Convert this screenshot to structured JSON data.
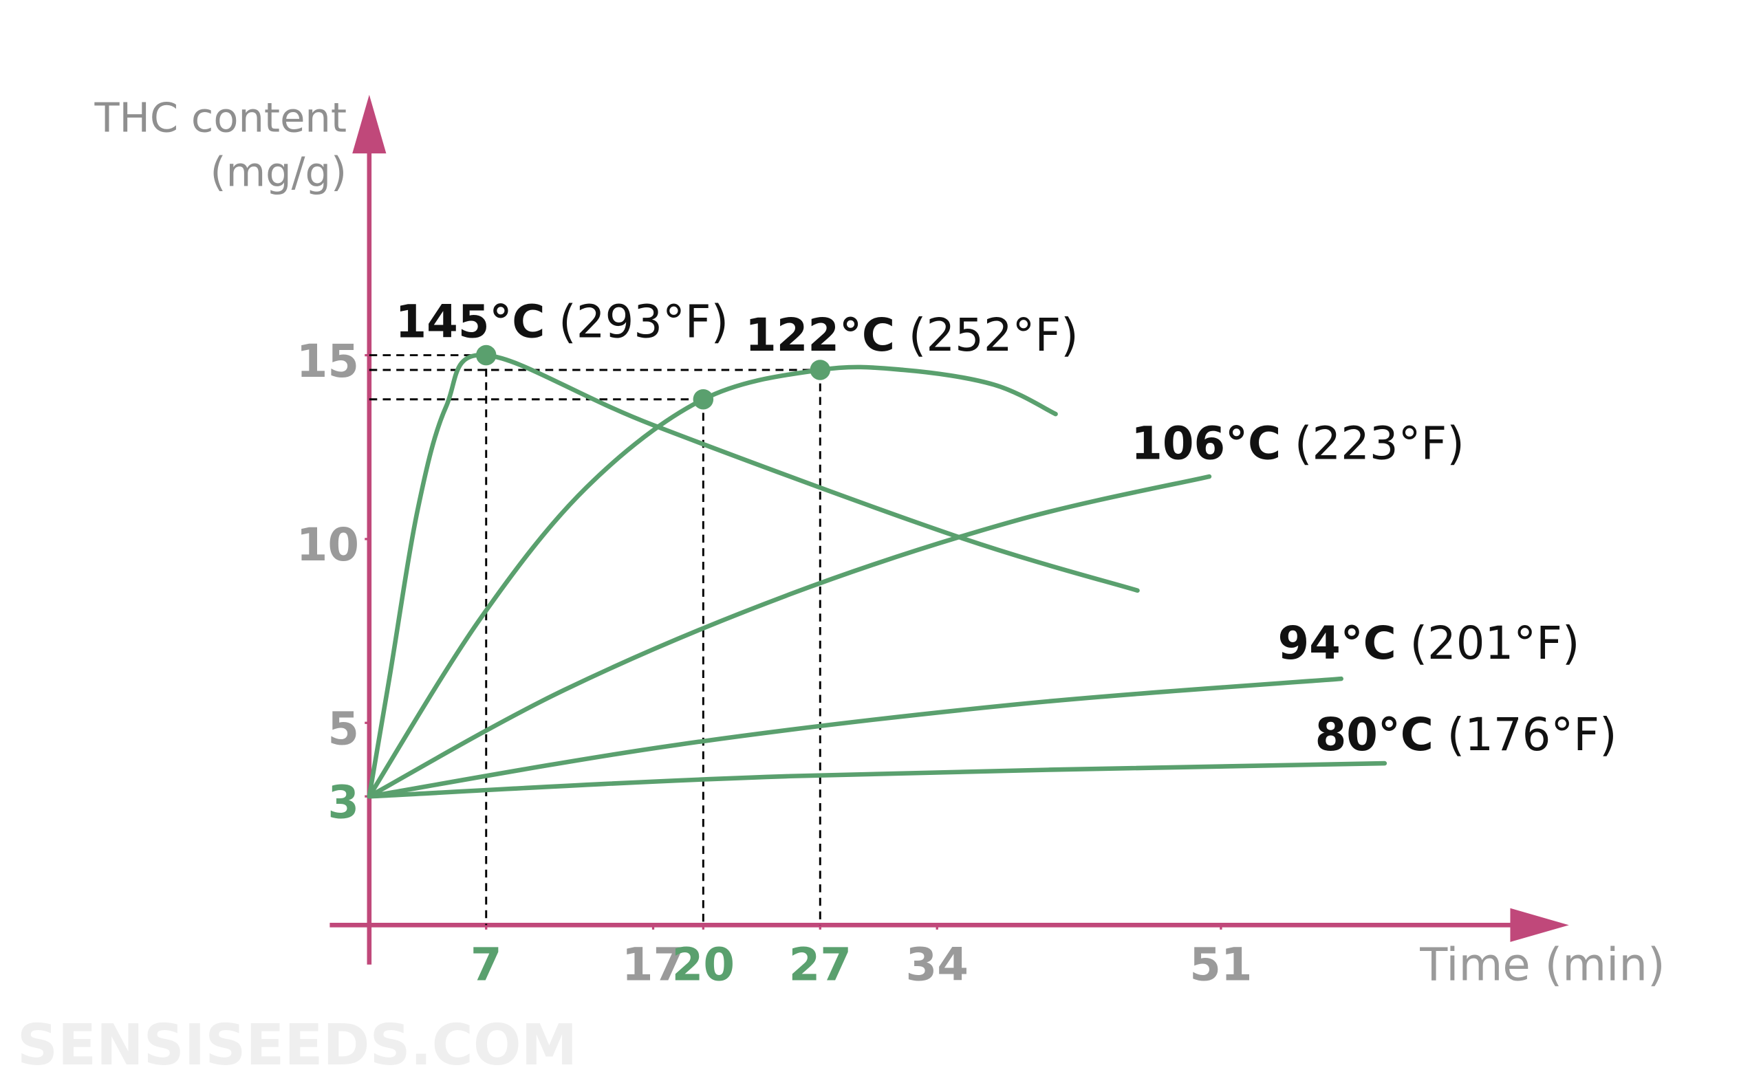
{
  "chart_data": {
    "type": "line",
    "y_label_lines": [
      "THC content",
      "(mg/g)"
    ],
    "x_label": "Time (min)",
    "watermark": "SENSISEEDS.COM",
    "xlim": [
      0,
      71.5
    ],
    "ylim": [
      -0.5,
      21.9
    ],
    "xticks": [
      7,
      17,
      20,
      27,
      34,
      51
    ],
    "xtick_colors": [
      "#5aa06e",
      "#9a9a9a",
      "#5aa06e",
      "#5aa06e",
      "#9a9a9a",
      "#9a9a9a"
    ],
    "yticks": [
      3,
      5,
      10,
      15
    ],
    "ytick_colors": [
      "#5aa06e",
      "#9a9a9a",
      "#9a9a9a",
      "#9a9a9a"
    ],
    "axis_color": "#c0487a",
    "series": [
      {
        "name": "145°C",
        "fahrenheit": "(293°F)",
        "color": "#5aa06e",
        "x": [
          0,
          1.2,
          2.9,
          4.6,
          7,
          17,
          35,
          46
        ],
        "values": [
          3,
          6.2,
          10.8,
          13.6,
          15,
          13.1,
          10.1,
          8.6
        ]
      },
      {
        "name": "122°C",
        "fahrenheit": "(252°F)",
        "color": "#5aa06e",
        "x": [
          0,
          6.6,
          13,
          20,
          27,
          32,
          37.4,
          41.1
        ],
        "values": [
          3,
          7.8,
          11.4,
          13.8,
          14.6,
          14.6,
          14.2,
          13.4
        ]
      },
      {
        "name": "106°C",
        "fahrenheit": "(223°F)",
        "color": "#5aa06e",
        "x": [
          0,
          11.7,
          25.2,
          38.7,
          50.3
        ],
        "values": [
          3,
          5.9,
          8.5,
          10.5,
          11.7
        ]
      },
      {
        "name": "94°C",
        "fahrenheit": "(201°F)",
        "color": "#5aa06e",
        "x": [
          0,
          18.4,
          38.7,
          58.2
        ],
        "values": [
          3,
          4.4,
          5.5,
          6.2
        ]
      },
      {
        "name": "80°C",
        "fahrenheit": "(176°F)",
        "color": "#5aa06e",
        "x": [
          0,
          25.2,
          60.8
        ],
        "values": [
          3,
          3.55,
          3.9
        ]
      }
    ],
    "markers": [
      {
        "x": 7,
        "y": 15
      },
      {
        "x": 20,
        "y": 13.8
      },
      {
        "x": 27,
        "y": 14.6
      }
    ]
  }
}
